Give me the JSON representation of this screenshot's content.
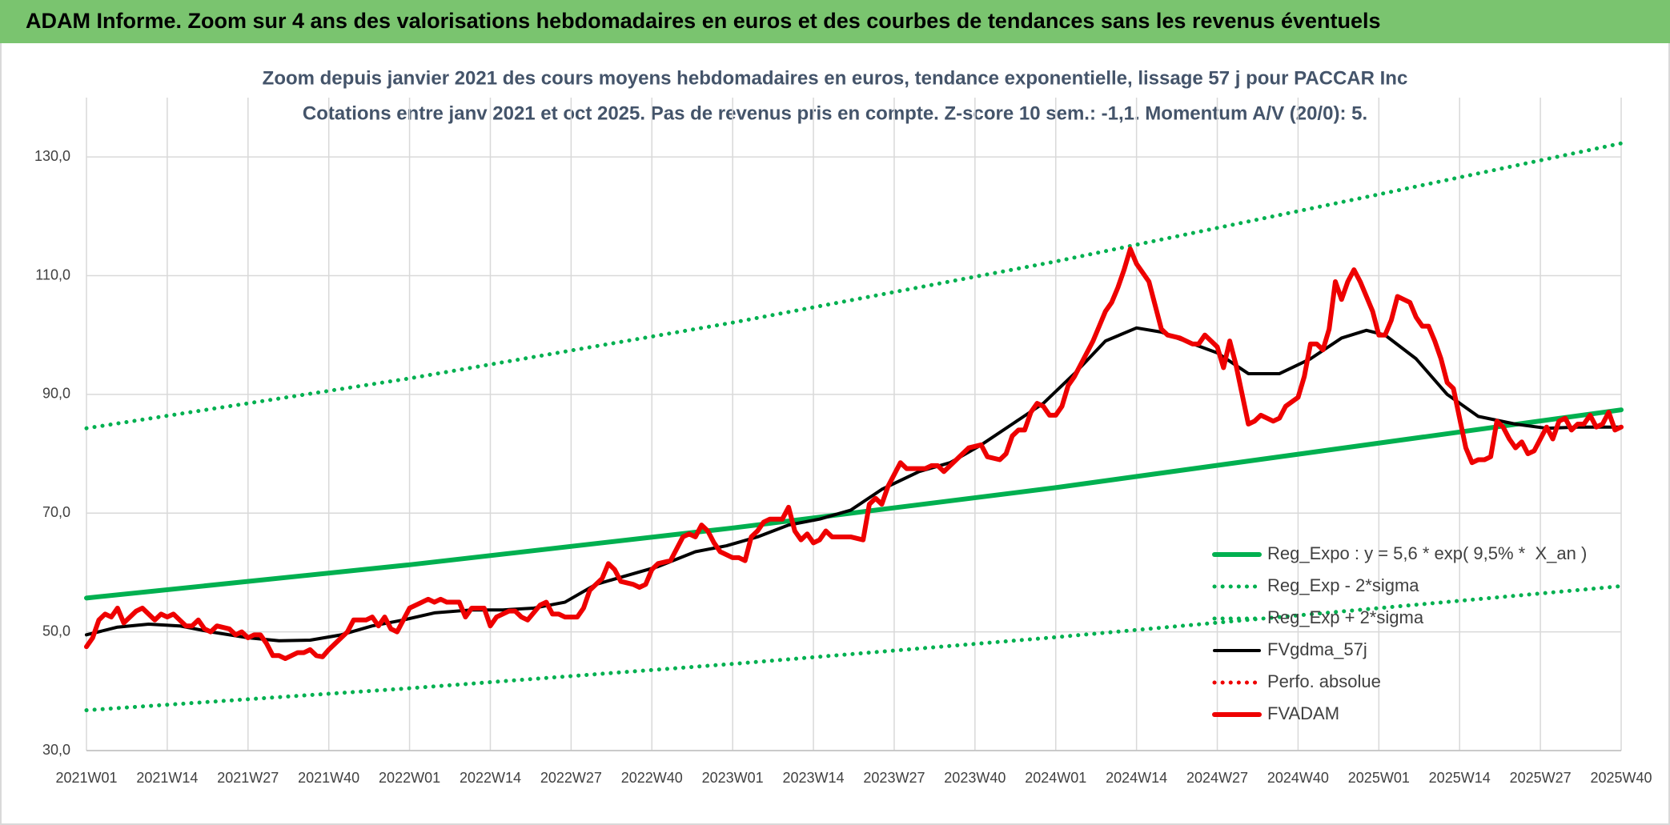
{
  "header": {
    "title": "ADAM Informe. Zoom sur 4 ans des valorisations hebdomadaires en euros et des courbes de tendances sans les revenus éventuels"
  },
  "chart_data": {
    "type": "line",
    "title": "Zoom depuis janvier 2021 des cours moyens hebdomadaires en euros, tendance exponentielle, lissage 57 j pour PACCAR Inc",
    "subtitle": "Cotations entre janv 2021 et oct 2025. Pas de revenus pris en compte. Z-score 10 sem.: -1,1. Momentum A/V (20/0): 5.",
    "xlim": [
      0,
      247
    ],
    "xticks": [
      {
        "value": 0,
        "label": "2021W01"
      },
      {
        "value": 13,
        "label": "2021W14"
      },
      {
        "value": 26,
        "label": "2021W27"
      },
      {
        "value": 39,
        "label": "2021W40"
      },
      {
        "value": 52,
        "label": "2022W01"
      },
      {
        "value": 65,
        "label": "2022W14"
      },
      {
        "value": 78,
        "label": "2022W27"
      },
      {
        "value": 91,
        "label": "2022W40"
      },
      {
        "value": 104,
        "label": "2023W01"
      },
      {
        "value": 117,
        "label": "2023W14"
      },
      {
        "value": 130,
        "label": "2023W27"
      },
      {
        "value": 143,
        "label": "2023W40"
      },
      {
        "value": 156,
        "label": "2024W01"
      },
      {
        "value": 169,
        "label": "2024W14"
      },
      {
        "value": 182,
        "label": "2024W27"
      },
      {
        "value": 195,
        "label": "2024W40"
      },
      {
        "value": 208,
        "label": "2025W01"
      },
      {
        "value": 221,
        "label": "2025W14"
      },
      {
        "value": 234,
        "label": "2025W27"
      },
      {
        "value": 247,
        "label": "2025W40"
      }
    ],
    "ylim": [
      30,
      140
    ],
    "yticks": [
      {
        "value": 30,
        "label": "30,0"
      },
      {
        "value": 50,
        "label": "50,0"
      },
      {
        "value": 70,
        "label": "70,0"
      },
      {
        "value": 90,
        "label": "90,0"
      },
      {
        "value": 110,
        "label": "110,0"
      },
      {
        "value": 130,
        "label": "130,0"
      }
    ],
    "grid": true,
    "legend": "bottom-right",
    "series": [
      {
        "name": "Reg_Expo : y = 5,6 * exp( 9,5% *  X_an )",
        "color": "#00b050",
        "style": "solid",
        "x": [
          0,
          52,
          104,
          156,
          208,
          247
        ],
        "values": [
          55.7,
          61.3,
          67.5,
          74.3,
          81.8,
          87.4
        ]
      },
      {
        "name": "Reg_Exp - 2*sigma",
        "color": "#00b050",
        "style": "dotted",
        "x": [
          0,
          52,
          104,
          156,
          208,
          247
        ],
        "values": [
          36.8,
          40.5,
          44.6,
          49.1,
          54.0,
          57.7
        ]
      },
      {
        "name": "Reg_Exp + 2*sigma",
        "color": "#00b050",
        "style": "dotted",
        "x": [
          0,
          52,
          104,
          156,
          208,
          247
        ],
        "values": [
          84.3,
          92.7,
          102.1,
          112.4,
          123.7,
          132.3
        ]
      },
      {
        "name": "FVgdma_57j",
        "color": "#000000",
        "style": "solid",
        "x": [
          0,
          5,
          10,
          15,
          20,
          26,
          31,
          36,
          41,
          46,
          51,
          56,
          62,
          67,
          72,
          77,
          82,
          87,
          92,
          98,
          103,
          108,
          113,
          118,
          123,
          128,
          134,
          139,
          144,
          149,
          154,
          159,
          164,
          169,
          173,
          176,
          182,
          187,
          192,
          197,
          202,
          206,
          209,
          214,
          219,
          224,
          230,
          235,
          240,
          247
        ],
        "values": [
          49.5,
          50.8,
          51.3,
          51,
          50,
          49,
          48.5,
          48.6,
          49.5,
          51,
          52,
          53.2,
          53.7,
          53.7,
          54,
          55,
          58,
          59.5,
          61,
          63.5,
          64.5,
          66,
          68,
          69,
          70.5,
          74,
          77,
          78.5,
          81.5,
          85,
          88.5,
          93.5,
          99,
          101.2,
          100.5,
          99.3,
          97,
          93.5,
          93.5,
          96,
          99.5,
          100.8,
          100,
          96,
          90,
          86.3,
          85,
          84.3,
          84.5,
          84.5
        ]
      },
      {
        "name": "Perfo. absolue",
        "color": "#ee0000",
        "style": "dotted",
        "x": [],
        "values": []
      },
      {
        "name": "FVADAM",
        "color": "#ee0000",
        "style": "solid",
        "x": [
          0,
          1,
          2,
          3,
          4,
          5,
          6,
          8,
          9,
          11,
          12,
          13,
          14,
          16,
          17,
          18,
          19,
          20,
          21,
          23,
          24,
          25,
          26,
          27,
          28,
          29,
          30,
          31,
          32,
          34,
          35,
          36,
          37,
          38,
          39,
          40,
          42,
          43,
          45,
          46,
          47,
          48,
          49,
          50,
          51,
          52,
          54,
          55,
          56,
          57,
          58,
          60,
          61,
          62,
          64,
          65,
          66,
          68,
          69,
          70,
          71,
          73,
          74,
          75,
          76,
          77,
          79,
          80,
          81,
          83,
          84,
          85,
          86,
          88,
          89,
          90,
          91,
          92,
          94,
          95,
          96,
          97,
          98,
          99,
          100,
          101,
          102,
          104,
          105,
          106,
          107,
          108,
          109,
          110,
          112,
          113,
          114,
          115,
          116,
          117,
          118,
          119,
          120,
          122,
          123,
          125,
          126,
          127,
          128,
          129,
          130,
          131,
          132,
          134,
          135,
          136,
          137,
          138,
          140,
          141,
          142,
          144,
          145,
          147,
          148,
          149,
          150,
          151,
          152,
          153,
          154,
          155,
          156,
          157,
          158,
          159,
          161,
          162,
          163,
          164,
          165,
          166,
          167,
          168,
          169,
          171,
          172,
          173,
          174,
          176,
          177,
          178,
          179,
          180,
          182,
          183,
          184,
          185,
          186,
          187,
          188,
          189,
          190,
          191,
          192,
          193,
          195,
          196,
          197,
          198,
          199,
          200,
          201,
          202,
          203,
          204,
          205,
          207,
          208,
          209,
          210,
          211,
          212,
          213,
          214,
          215,
          216,
          217,
          218,
          219,
          220,
          221,
          222,
          223,
          224,
          225,
          226,
          227,
          228,
          229,
          230,
          231,
          232,
          233,
          234,
          235,
          236,
          237,
          238,
          239,
          240,
          241,
          242,
          243,
          244,
          245,
          246,
          247
        ],
        "values": [
          47.5,
          49,
          52,
          53,
          52.5,
          54,
          51.5,
          53.5,
          54,
          52,
          53,
          52.5,
          53,
          51,
          51,
          52,
          50.5,
          50,
          51,
          50.5,
          49.5,
          50,
          49,
          49.5,
          49.5,
          48,
          46,
          46,
          45.5,
          46.5,
          46.5,
          47,
          46,
          45.8,
          47,
          48,
          50,
          52,
          52,
          52.5,
          51,
          52.5,
          50.5,
          50,
          52,
          54,
          55,
          55.5,
          55,
          55.5,
          55,
          55,
          52.5,
          54,
          54,
          51,
          52.5,
          53.5,
          53.5,
          52.5,
          52,
          54.5,
          55,
          53,
          53,
          52.5,
          52.5,
          54,
          57,
          59,
          61.5,
          60.5,
          58.5,
          58,
          57.5,
          58,
          60.5,
          61.5,
          62,
          64,
          66,
          66.5,
          66,
          68,
          67,
          65,
          63.5,
          62.5,
          62.5,
          62,
          66,
          67,
          68.5,
          69,
          69,
          71,
          67,
          65.5,
          66.5,
          65,
          65.5,
          67,
          66,
          66,
          66,
          65.5,
          71.5,
          72.5,
          71.5,
          74.5,
          76.5,
          78.5,
          77.5,
          77.5,
          77.5,
          78,
          78,
          77,
          79,
          80,
          81,
          81.5,
          79.5,
          79,
          80,
          83,
          84,
          84,
          87,
          88.5,
          88,
          86.5,
          86.5,
          88,
          91.5,
          93,
          97,
          99,
          101.5,
          104,
          105.5,
          108,
          111,
          114.5,
          112,
          109,
          105,
          101,
          100,
          99.5,
          99,
          98.5,
          98.5,
          100,
          98,
          94.5,
          99,
          95,
          90,
          85,
          85.5,
          86.5,
          86,
          85.5,
          86,
          88,
          89.5,
          93,
          98.5,
          98.5,
          97.5,
          101,
          109,
          106,
          109,
          111,
          109,
          104,
          100,
          100,
          102.5,
          106.5,
          106,
          105.5,
          103,
          101.5,
          101.5,
          99,
          96,
          92,
          91,
          86,
          81,
          78.5,
          79,
          79,
          79.5,
          85.5,
          84.5,
          82.5,
          81,
          82,
          80,
          80.5,
          82.5,
          84.5,
          82.5,
          85.5,
          86,
          84,
          85,
          85,
          86.5,
          84.5,
          85,
          87,
          84,
          84.5
        ]
      }
    ]
  }
}
